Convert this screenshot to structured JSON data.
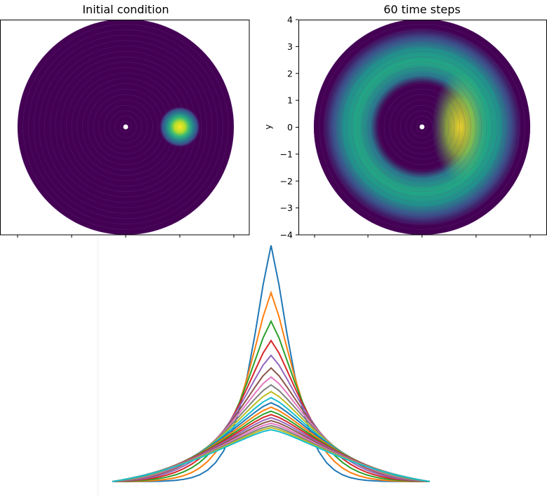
{
  "chart_data": [
    {
      "type": "heatmap",
      "title": "Initial condition",
      "domain": "disk",
      "radius": 4,
      "description_values": {
        "blob_center": [
          2.0,
          0.0
        ],
        "blob_sigma": 0.3,
        "peak": 1.0
      },
      "ring_count": 20,
      "colormap": "viridis"
    },
    {
      "type": "heatmap",
      "title": "60 time steps",
      "domain": "disk",
      "radius": 4,
      "ylabel": "y",
      "yticks": [
        "4",
        "3",
        "2",
        "1",
        "0",
        "−1",
        "−2",
        "−3",
        "−4"
      ],
      "ylim": [
        -4,
        4
      ],
      "colormap": "viridis"
    },
    {
      "type": "line",
      "x_count": 41,
      "series_count": 20,
      "colors": [
        "#1f77b4",
        "#ff7f0e",
        "#2ca02c",
        "#d62728",
        "#9467bd",
        "#8c564b",
        "#e377c2",
        "#7f7f7f",
        "#bcbd22",
        "#17becf"
      ],
      "peak_values": [
        1.0,
        0.8,
        0.68,
        0.6,
        0.54,
        0.49,
        0.455,
        0.425,
        0.4,
        0.378,
        0.36,
        0.344,
        0.33,
        0.318,
        0.307,
        0.297,
        0.288,
        0.28,
        0.273,
        0.266
      ]
    }
  ]
}
